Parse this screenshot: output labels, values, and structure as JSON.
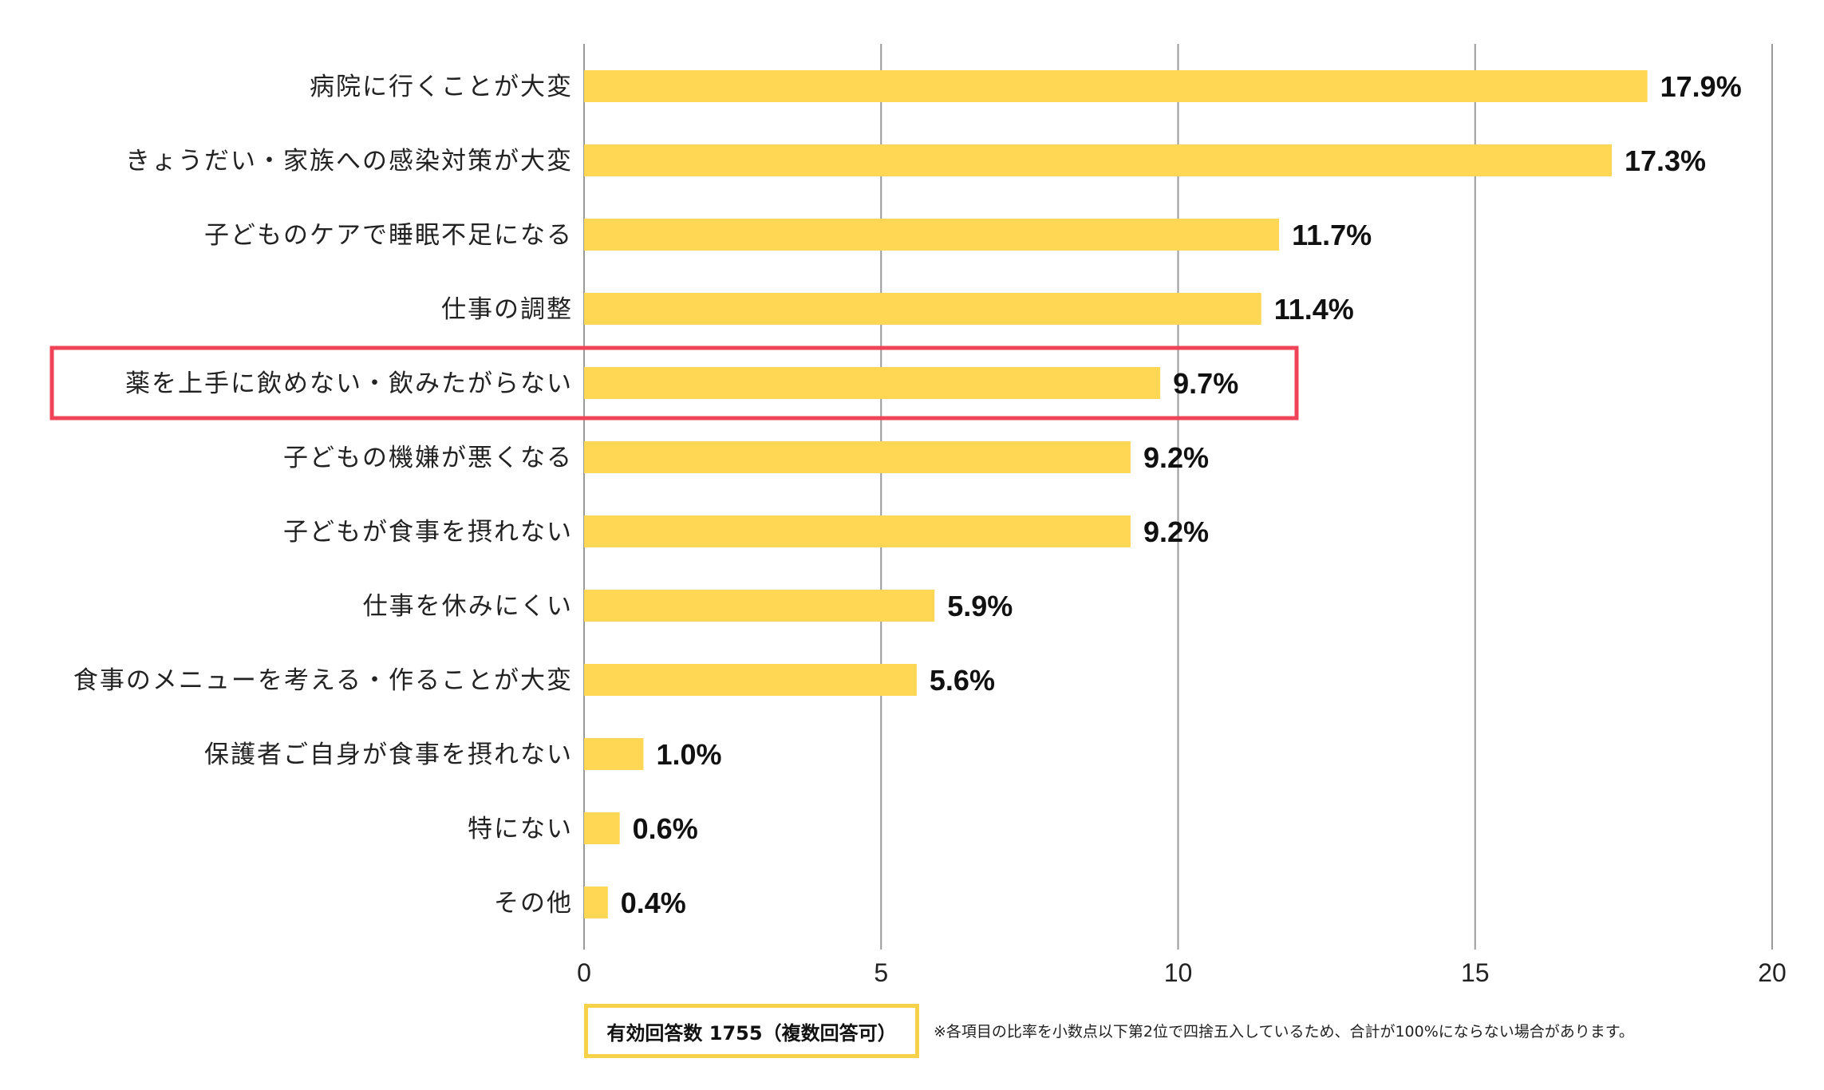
{
  "chart_data": {
    "type": "bar",
    "orientation": "horizontal",
    "categories": [
      "病院に行くことが大変",
      "きょうだい・家族への感染対策が大変",
      "子どものケアで睡眠不足になる",
      "仕事の調整",
      "薬を上手に飲めない・飲みたがらない",
      "子どもの機嫌が悪くなる",
      "子どもが食事を摂れない",
      "仕事を休みにくい",
      "食事のメニューを考える・作ることが大変",
      "保護者ご自身が食事を摂れない",
      "特にない",
      "その他"
    ],
    "values": [
      17.9,
      17.3,
      11.7,
      11.4,
      9.7,
      9.2,
      9.2,
      5.9,
      5.6,
      1.0,
      0.6,
      0.4
    ],
    "value_labels": [
      "17.9%",
      "17.3%",
      "11.7%",
      "11.4%",
      "9.7%",
      "9.2%",
      "9.2%",
      "5.9%",
      "5.6%",
      "1.0%",
      "0.6%",
      "0.4%"
    ],
    "xlim": [
      0,
      20
    ],
    "xticks": [
      "0",
      "5",
      "10",
      "15",
      "20"
    ],
    "xtick_values": [
      0,
      5,
      10,
      15,
      20
    ],
    "grid": true,
    "highlighted_category_index": 4,
    "bar_color": "#ffd754",
    "highlight_color": "#ef4457",
    "title": "",
    "xlabel": "",
    "ylabel": ""
  },
  "footnote": {
    "sample": "有効回答数 1755（複数回答可）",
    "note": "※各項目の比率を小数点以下第2位で四捨五入しているため、合計が100%にならない場合があります。",
    "box_color": "#f5d24a"
  }
}
